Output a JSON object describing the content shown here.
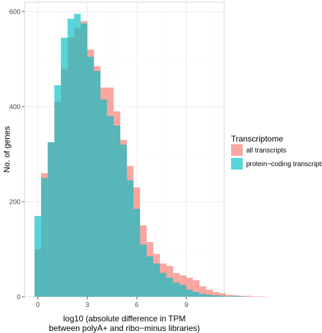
{
  "chart_data": {
    "type": "histogram",
    "xlabel": [
      "log10 (absolute difference in TPM",
      "between polyA+ and ribo−minus libraries)"
    ],
    "ylabel": "No. of genes",
    "xlim": [
      -0.8,
      11.3
    ],
    "ylim": [
      0,
      620
    ],
    "x_ticks": [
      0,
      3,
      6,
      9
    ],
    "y_ticks": [
      0,
      200,
      400,
      600
    ],
    "bin_start": -0.2,
    "bin_width": 0.4,
    "legend": {
      "title": "Transcriptome",
      "position": "right",
      "entries": [
        {
          "label": "all transcripts",
          "color": "#F8766D"
        },
        {
          "label": "protein−coding transcripts",
          "color": "#00BFC4"
        }
      ]
    },
    "grid": true,
    "series": [
      {
        "name": "all transcripts",
        "color": "#F8766D",
        "values": [
          100,
          260,
          325,
          410,
          480,
          545,
          565,
          580,
          520,
          485,
          440,
          440,
          390,
          330,
          275,
          230,
          150,
          115,
          90,
          70,
          65,
          50,
          45,
          40,
          35,
          22,
          15,
          10,
          7,
          4,
          3,
          2,
          2,
          1,
          1,
          0
        ]
      },
      {
        "name": "protein−coding transcripts",
        "color": "#00BFC4",
        "values": [
          170,
          250,
          325,
          445,
          545,
          585,
          595,
          575,
          505,
          475,
          415,
          380,
          360,
          320,
          245,
          185,
          110,
          85,
          70,
          50,
          40,
          30,
          25,
          15,
          10,
          6,
          4,
          3,
          2,
          1,
          2,
          1,
          0,
          0,
          0,
          0
        ]
      }
    ]
  }
}
